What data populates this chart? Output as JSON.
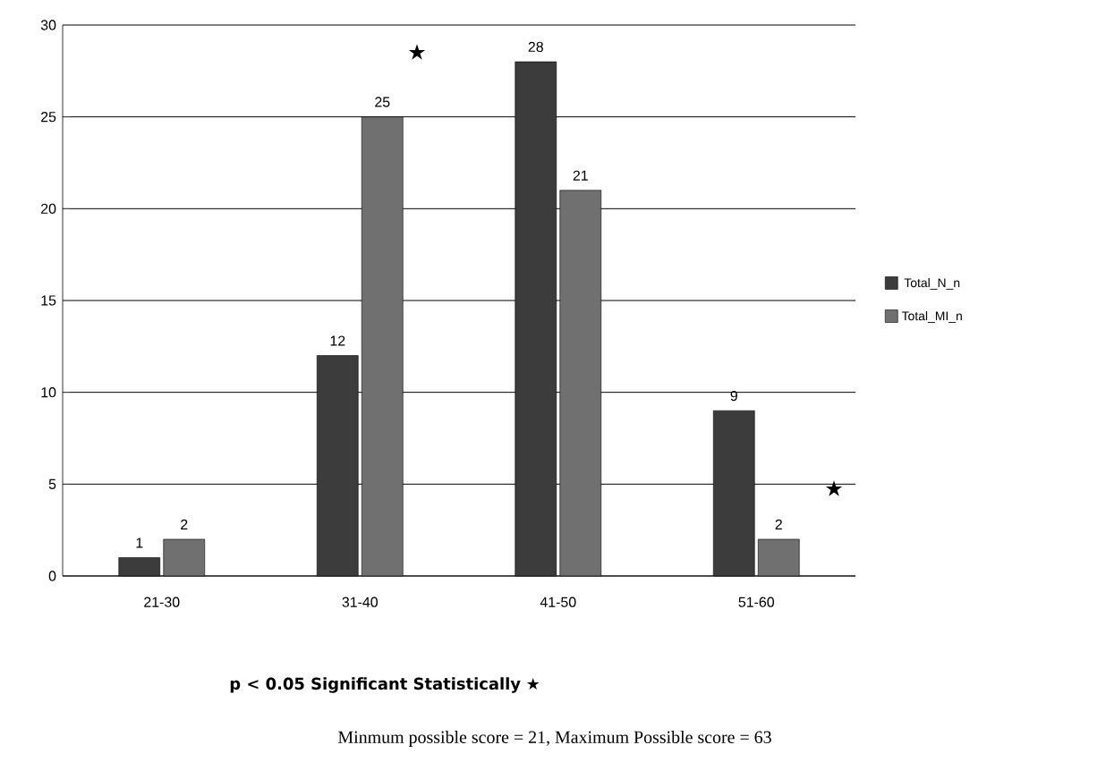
{
  "chart_data": {
    "type": "bar",
    "categories": [
      "21-30",
      "31-40",
      "41-50",
      "51-60"
    ],
    "series": [
      {
        "name": "Total_N_n",
        "color": "#3c3c3c",
        "values": [
          1,
          12,
          28,
          9
        ]
      },
      {
        "name": "Total_MI_n",
        "color": "#707070",
        "values": [
          2,
          25,
          21,
          2
        ]
      }
    ],
    "ylim": [
      0,
      30
    ],
    "yticks": [
      0,
      5,
      10,
      15,
      20,
      25,
      30
    ],
    "grid": "y",
    "legend": "right",
    "data_labels": true,
    "annotations": [
      "★",
      "★",
      "**p < 0.05 Significant Statistically** ★",
      "Minmum possible score = 21, Maximum Possible score = 63"
    ]
  }
}
